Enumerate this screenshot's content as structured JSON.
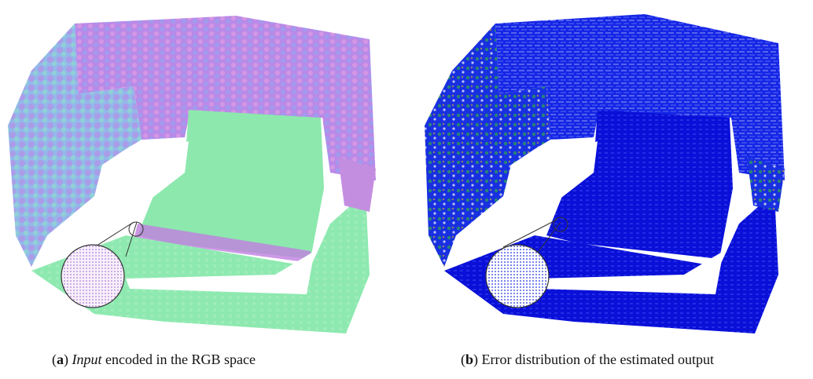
{
  "figure": {
    "panels": [
      {
        "id": "a",
        "letter": "a",
        "caption_italic": "Input",
        "caption_rest": " encoded in the RGB space",
        "palette": [
          "#7ee6a8",
          "#a77af0",
          "#c985e8",
          "#88a8f0",
          "#9de3d0",
          "#b9f0c8",
          "#e48bd8"
        ]
      },
      {
        "id": "b",
        "letter": "b",
        "caption_italic": "",
        "caption_rest": " Error distribution of the estimated output",
        "palette": [
          "#1020e8",
          "#0a12c8",
          "#2b3cf2",
          "#3fae4a",
          "#d2a23a",
          "#c04a2a",
          "#ffffff"
        ]
      }
    ]
  }
}
